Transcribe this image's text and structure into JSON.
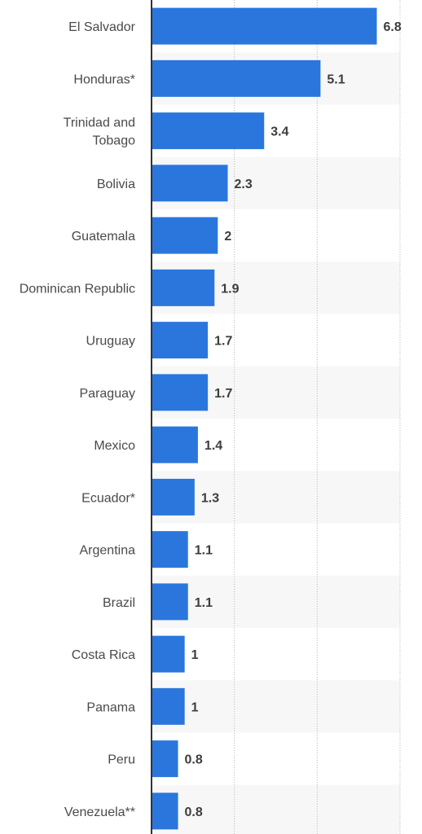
{
  "chart_data": {
    "type": "bar",
    "orientation": "horizontal",
    "categories": [
      "El Salvador",
      "Honduras*",
      "Trinidad and Tobago",
      "Bolivia",
      "Guatemala",
      "Dominican Republic",
      "Uruguay",
      "Paraguay",
      "Mexico",
      "Ecuador*",
      "Argentina",
      "Brazil",
      "Costa Rica",
      "Panama",
      "Peru",
      "Venezuela**"
    ],
    "category_label_lines": [
      [
        "El Salvador"
      ],
      [
        "Honduras*"
      ],
      [
        "Trinidad and",
        "Tobago"
      ],
      [
        "Bolivia"
      ],
      [
        "Guatemala"
      ],
      [
        "Dominican Republic"
      ],
      [
        "Uruguay"
      ],
      [
        "Paraguay"
      ],
      [
        "Mexico"
      ],
      [
        "Ecuador*"
      ],
      [
        "Argentina"
      ],
      [
        "Brazil"
      ],
      [
        "Costa Rica"
      ],
      [
        "Panama"
      ],
      [
        "Peru"
      ],
      [
        "Venezuela**"
      ]
    ],
    "values": [
      6.8,
      5.1,
      3.4,
      2.3,
      2,
      1.9,
      1.7,
      1.7,
      1.4,
      1.3,
      1.1,
      1.1,
      1,
      1,
      0.8,
      0.8
    ],
    "value_labels": [
      "6.8",
      "5.1",
      "3.4",
      "2.3",
      "2",
      "1.9",
      "1.7",
      "1.7",
      "1.4",
      "1.3",
      "1.1",
      "1.1",
      "1",
      "1",
      "0.8",
      "0.8"
    ],
    "xlim": [
      0,
      7.5
    ],
    "gridlines": [
      2.5,
      5,
      7.5
    ],
    "grid": true,
    "title": "",
    "xlabel": "",
    "ylabel": "",
    "colors": {
      "bar": "#2a76dd",
      "axis": "#333333",
      "grid": "#b5b5b5",
      "band": "#f7f7f7",
      "category_text": "#4a4a4a",
      "value_text": "#3d3d3d"
    }
  }
}
